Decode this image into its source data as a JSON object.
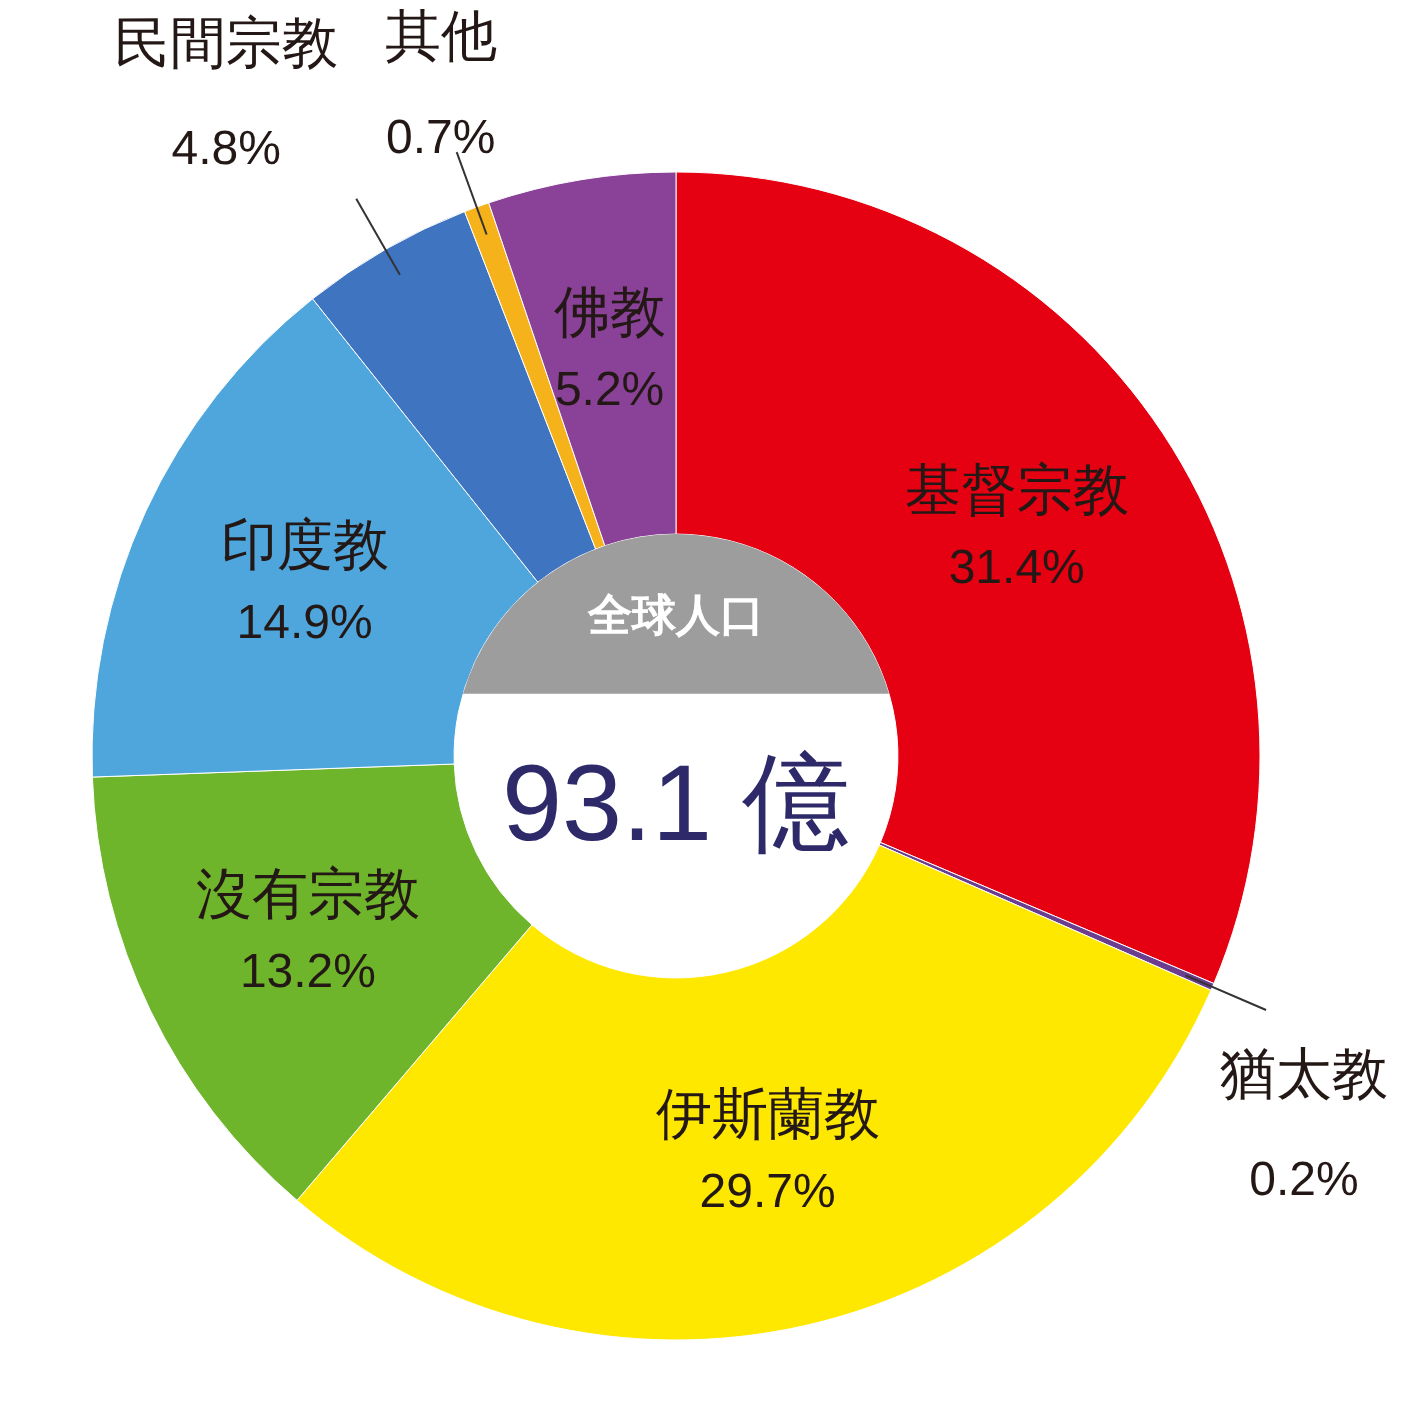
{
  "chart_data": {
    "type": "donut",
    "categories": [
      "基督宗教",
      "猶太教",
      "伊斯蘭教",
      "沒有宗教",
      "印度教",
      "民間宗教",
      "其他",
      "佛教"
    ],
    "values": [
      31.4,
      0.2,
      29.7,
      13.2,
      14.9,
      4.8,
      0.7,
      5.2
    ],
    "value_labels": [
      "31.4%",
      "0.2%",
      "29.7%",
      "13.2%",
      "14.9%",
      "4.8%",
      "0.7%",
      "5.2%"
    ],
    "colors": [
      "#e50012",
      "#6a3d8f",
      "#ffe800",
      "#6fb52c",
      "#4ea6dc",
      "#3f74c0",
      "#f5b21b",
      "#8a4198"
    ],
    "annotations": [
      "全球人口",
      "93.1 億"
    ]
  }
}
